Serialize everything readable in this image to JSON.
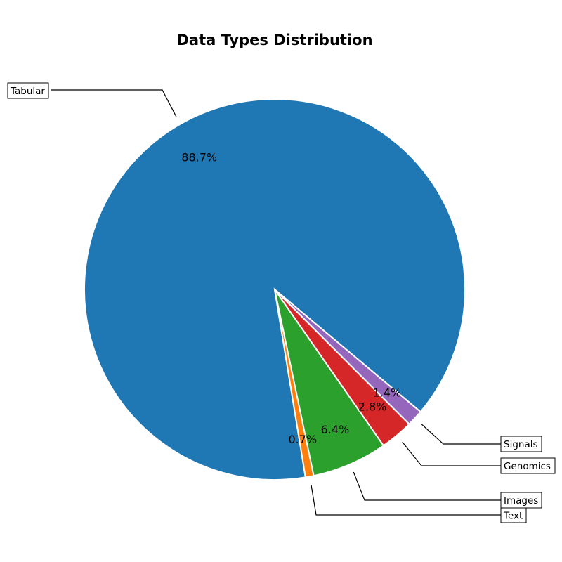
{
  "chart_data": {
    "type": "pie",
    "title": "Data Types Distribution",
    "slices": [
      {
        "label": "Tabular",
        "percent": 88.7,
        "pct_label": "88.7%",
        "color": "#1f77b4"
      },
      {
        "label": "Text",
        "percent": 0.7,
        "pct_label": "0.7%",
        "color": "#ff7f0e"
      },
      {
        "label": "Images",
        "percent": 6.4,
        "pct_label": "6.4%",
        "color": "#2ca02c"
      },
      {
        "label": "Genomics",
        "percent": 2.8,
        "pct_label": "2.8%",
        "color": "#d62728"
      },
      {
        "label": "Signals",
        "percent": 1.4,
        "pct_label": "1.4%",
        "color": "#9467bd"
      }
    ],
    "legend": "none",
    "start_angle_deg": -40,
    "direction": "counterclockwise"
  }
}
